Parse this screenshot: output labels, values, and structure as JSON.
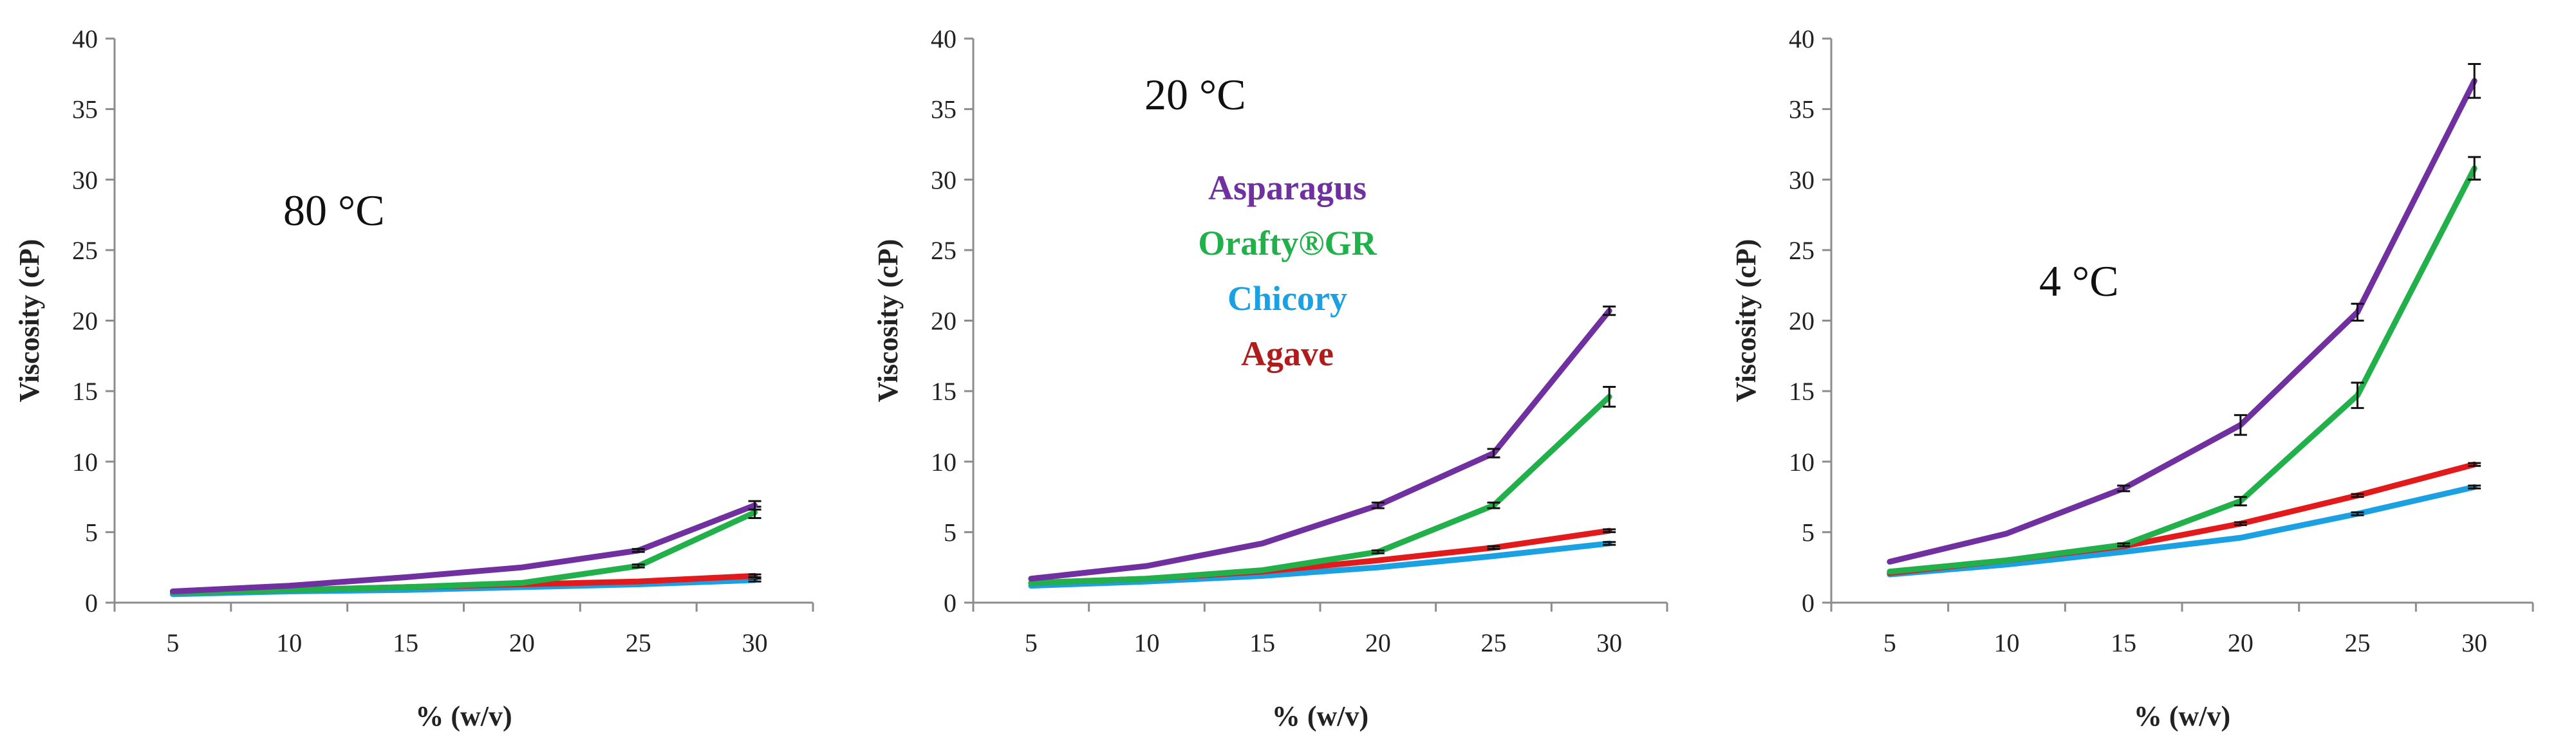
{
  "chart_data": [
    {
      "type": "line",
      "panel_label": "80 °C",
      "xlabel": "% (w/v)",
      "ylabel": "Viscosity (cP)",
      "categories": [
        "5",
        "10",
        "15",
        "20",
        "25",
        "30"
      ],
      "ylim": [
        0,
        40
      ],
      "yticks": [
        0,
        5,
        10,
        15,
        20,
        25,
        30,
        35,
        40
      ],
      "series": [
        {
          "key": "agave",
          "color": "#e31a1c",
          "values": [
            0.7,
            0.9,
            1.1,
            1.3,
            1.5,
            1.9
          ],
          "errors": [
            0,
            0,
            0,
            0,
            0,
            0.1
          ]
        },
        {
          "key": "chicory",
          "color": "#1ba1e2",
          "values": [
            0.6,
            0.8,
            0.9,
            1.1,
            1.3,
            1.6
          ],
          "errors": [
            0,
            0,
            0,
            0,
            0,
            0.1
          ]
        },
        {
          "key": "orafty",
          "color": "#22b04b",
          "values": [
            0.7,
            0.9,
            1.1,
            1.4,
            2.6,
            6.4
          ],
          "errors": [
            0,
            0,
            0,
            0,
            0.1,
            0.4
          ]
        },
        {
          "key": "asparagus",
          "color": "#7030a0",
          "values": [
            0.8,
            1.2,
            1.8,
            2.5,
            3.7,
            6.9
          ],
          "errors": [
            0,
            0,
            0,
            0,
            0.1,
            0.3
          ]
        }
      ]
    },
    {
      "type": "line",
      "panel_label": "20 °C",
      "xlabel": "% (w/v)",
      "ylabel": "Viscosity (cP)",
      "categories": [
        "5",
        "10",
        "15",
        "20",
        "25",
        "30"
      ],
      "ylim": [
        0,
        40
      ],
      "yticks": [
        0,
        5,
        10,
        15,
        20,
        25,
        30,
        35,
        40
      ],
      "legend": [
        {
          "name": "Asparagus",
          "color": "#7030a0"
        },
        {
          "name": "Orafty®GR",
          "color": "#22b04b"
        },
        {
          "name": "Chicory",
          "color": "#1ba1e2"
        },
        {
          "name": "Agave",
          "color": "#b01c1c"
        }
      ],
      "series": [
        {
          "key": "agave",
          "color": "#e31a1c",
          "values": [
            1.4,
            1.7,
            2.2,
            3.0,
            3.9,
            5.1
          ],
          "errors": [
            0,
            0,
            0,
            0,
            0.1,
            0.1
          ]
        },
        {
          "key": "chicory",
          "color": "#1ba1e2",
          "values": [
            1.2,
            1.5,
            1.9,
            2.5,
            3.3,
            4.2
          ],
          "errors": [
            0,
            0,
            0,
            0,
            0,
            0.1
          ]
        },
        {
          "key": "orafty",
          "color": "#22b04b",
          "values": [
            1.4,
            1.7,
            2.3,
            3.6,
            6.9,
            14.6
          ],
          "errors": [
            0,
            0,
            0,
            0.1,
            0.2,
            0.7
          ]
        },
        {
          "key": "asparagus",
          "color": "#7030a0",
          "values": [
            1.7,
            2.6,
            4.2,
            6.9,
            10.6,
            20.7
          ],
          "errors": [
            0,
            0,
            0,
            0.2,
            0.3,
            0.3
          ]
        }
      ]
    },
    {
      "type": "line",
      "panel_label": "4 °C",
      "xlabel": "% (w/v)",
      "ylabel": "Viscosity (cP)",
      "categories": [
        "5",
        "10",
        "15",
        "20",
        "25",
        "30"
      ],
      "ylim": [
        0,
        40
      ],
      "yticks": [
        0,
        5,
        10,
        15,
        20,
        25,
        30,
        35,
        40
      ],
      "series": [
        {
          "key": "agave",
          "color": "#e31a1c",
          "values": [
            2.1,
            3.0,
            4.0,
            5.6,
            7.6,
            9.8
          ],
          "errors": [
            0,
            0,
            0,
            0.1,
            0.1,
            0.1
          ]
        },
        {
          "key": "chicory",
          "color": "#1ba1e2",
          "values": [
            2.0,
            2.7,
            3.6,
            4.6,
            6.3,
            8.2
          ],
          "errors": [
            0,
            0,
            0,
            0,
            0.1,
            0.1
          ]
        },
        {
          "key": "orafty",
          "color": "#22b04b",
          "values": [
            2.2,
            3.0,
            4.1,
            7.2,
            14.7,
            30.8
          ],
          "errors": [
            0,
            0,
            0.1,
            0.3,
            0.9,
            0.8
          ]
        },
        {
          "key": "asparagus",
          "color": "#7030a0",
          "values": [
            2.9,
            4.9,
            8.1,
            12.6,
            20.6,
            37.0
          ],
          "errors": [
            0,
            0,
            0.2,
            0.7,
            0.6,
            1.2
          ]
        }
      ]
    }
  ]
}
